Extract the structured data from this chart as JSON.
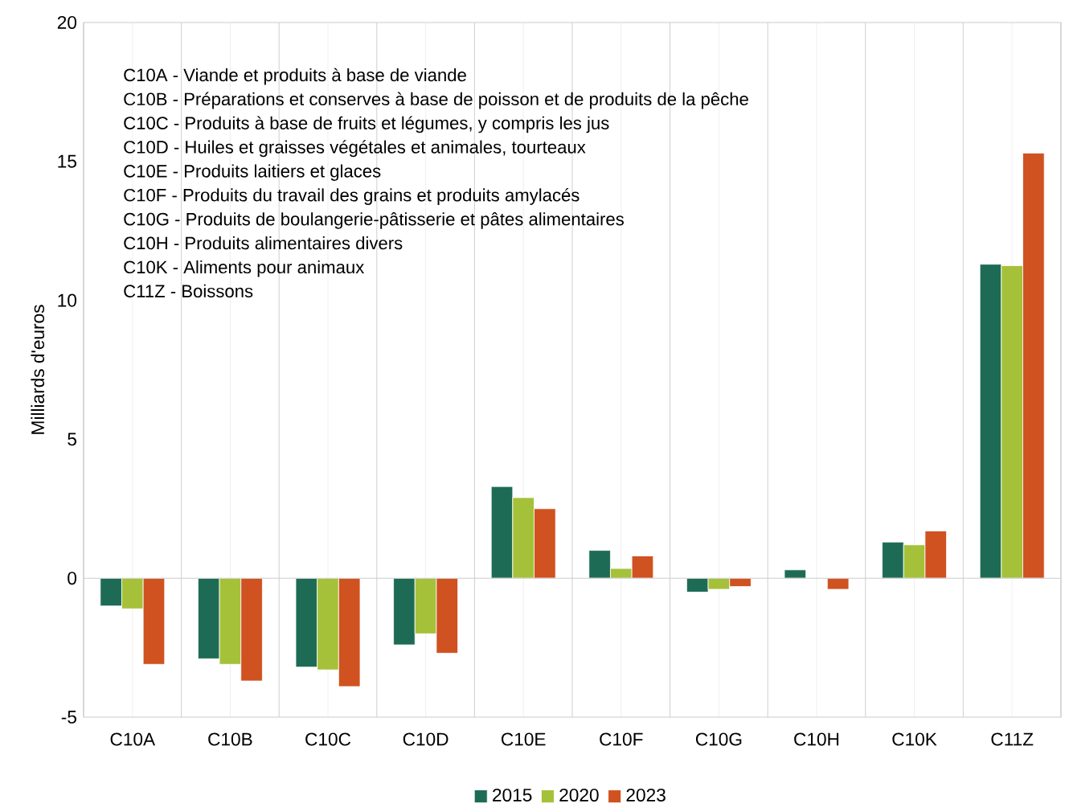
{
  "chart_data": {
    "type": "bar",
    "ylabel": "Milliards d'euros",
    "categories": [
      "C10A",
      "C10B",
      "C10C",
      "C10D",
      "C10E",
      "C10F",
      "C10G",
      "C10H",
      "C10K",
      "C11Z"
    ],
    "series": [
      {
        "name": "2015",
        "color": "#1e6b55",
        "values": [
          -1.0,
          -2.9,
          -3.2,
          -2.4,
          3.3,
          1.0,
          -0.5,
          0.3,
          1.3,
          11.3
        ]
      },
      {
        "name": "2020",
        "color": "#a5c13a",
        "values": [
          -1.1,
          -3.1,
          -3.3,
          -2.0,
          2.9,
          0.35,
          -0.4,
          null,
          1.2,
          11.25
        ]
      },
      {
        "name": "2023",
        "color": "#cf5220",
        "values": [
          -3.1,
          -3.7,
          -3.9,
          -2.7,
          2.5,
          0.8,
          -0.3,
          -0.4,
          1.7,
          15.3
        ]
      }
    ],
    "annotations": [
      "C10A - Viande et produits à base de viande",
      "C10B - Préparations et conserves à base de poisson et de produits de la pêche",
      "C10C - Produits à base de fruits et légumes, y compris les jus",
      "C10D - Huiles et graisses végétales et animales, tourteaux",
      "C10E - Produits laitiers et glaces",
      "C10F - Produits du travail des grains et produits amylacés",
      "C10G - Produits de boulangerie-pâtisserie et pâtes alimentaires",
      "C10H - Produits alimentaires divers",
      "C10K - Aliments pour animaux",
      "C11Z - Boissons"
    ],
    "ylim": [
      -5,
      20
    ],
    "yticks": [
      -5,
      0,
      5,
      10,
      15,
      20
    ],
    "grid": "x",
    "legend": "bottom"
  }
}
